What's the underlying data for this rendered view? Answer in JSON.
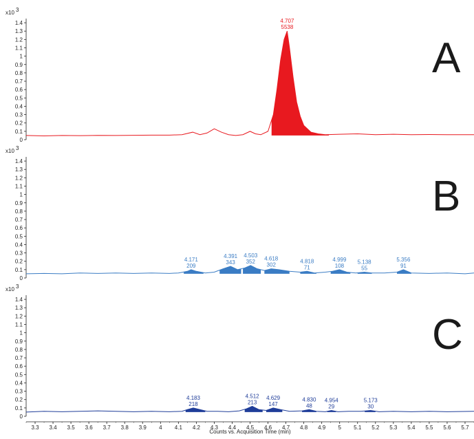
{
  "chart_data": {
    "type": "line",
    "xlabel": "Counts vs. Acquisition Time (min)",
    "xlim": [
      3.25,
      5.75
    ],
    "x_ticks": [
      "3.3",
      "3.4",
      "3.5",
      "3.6",
      "3.7",
      "3.8",
      "3.9",
      "4",
      "4.1",
      "4.2",
      "4.3",
      "4.4",
      "4.5",
      "4.6",
      "4.7",
      "4.8",
      "4.9",
      "5",
      "5.1",
      "5.2",
      "5.3",
      "5.4",
      "5.5",
      "5.6",
      "5.7"
    ],
    "y_ticks": [
      "0",
      "0.1",
      "0.2",
      "0.3",
      "0.4",
      "0.5",
      "0.6",
      "0.7",
      "0.8",
      "0.9",
      "1",
      "1.1",
      "1.2",
      "1.3",
      "1.4"
    ],
    "ylim": [
      0,
      1.45
    ],
    "y_multiplier_label": "x10",
    "y_multiplier_exp": "3",
    "panels": [
      {
        "label": "A",
        "color": "#e8191f",
        "baseline": 0.05,
        "series": {
          "x": [
            3.25,
            3.35,
            3.45,
            3.55,
            3.65,
            3.75,
            3.85,
            3.95,
            4.05,
            4.12,
            4.18,
            4.22,
            4.26,
            4.3,
            4.34,
            4.38,
            4.42,
            4.46,
            4.5,
            4.53,
            4.56,
            4.6,
            4.63,
            4.65,
            4.67,
            4.69,
            4.707,
            4.72,
            4.74,
            4.76,
            4.78,
            4.8,
            4.84,
            4.88,
            4.92,
            5.0,
            5.1,
            5.2,
            5.3,
            5.4,
            5.5,
            5.6,
            5.75
          ],
          "y": [
            0.05,
            0.045,
            0.05,
            0.048,
            0.052,
            0.05,
            0.053,
            0.055,
            0.055,
            0.06,
            0.09,
            0.06,
            0.08,
            0.13,
            0.09,
            0.06,
            0.05,
            0.06,
            0.1,
            0.07,
            0.06,
            0.1,
            0.3,
            0.6,
            0.95,
            1.2,
            1.3,
            1.1,
            0.75,
            0.45,
            0.28,
            0.17,
            0.09,
            0.07,
            0.06,
            0.065,
            0.07,
            0.06,
            0.065,
            0.06,
            0.062,
            0.06,
            0.06
          ]
        },
        "peaks": [
          {
            "rt": "4.707",
            "area": "5538",
            "x": 4.707,
            "start": 4.62,
            "end": 4.94,
            "height": 1.3
          }
        ]
      },
      {
        "label": "B",
        "color": "#3a7cc4",
        "baseline": 0.05,
        "series": {
          "x": [
            3.25,
            3.35,
            3.45,
            3.55,
            3.65,
            3.75,
            3.85,
            3.95,
            4.05,
            4.1,
            4.15,
            4.171,
            4.2,
            4.25,
            4.3,
            4.35,
            4.391,
            4.43,
            4.47,
            4.503,
            4.54,
            4.58,
            4.6,
            4.618,
            4.66,
            4.72,
            4.78,
            4.818,
            4.86,
            4.92,
            4.96,
            4.999,
            5.04,
            5.09,
            5.138,
            5.18,
            5.25,
            5.32,
            5.356,
            5.4,
            5.5,
            5.6,
            5.7,
            5.75
          ],
          "y": [
            0.05,
            0.055,
            0.05,
            0.06,
            0.055,
            0.06,
            0.055,
            0.06,
            0.055,
            0.06,
            0.08,
            0.1,
            0.08,
            0.06,
            0.07,
            0.11,
            0.14,
            0.1,
            0.12,
            0.15,
            0.11,
            0.09,
            0.1,
            0.11,
            0.1,
            0.08,
            0.07,
            0.08,
            0.06,
            0.07,
            0.08,
            0.1,
            0.07,
            0.06,
            0.07,
            0.06,
            0.06,
            0.07,
            0.1,
            0.06,
            0.055,
            0.06,
            0.05,
            0.06
          ]
        },
        "peaks": [
          {
            "rt": "4.171",
            "area": "209",
            "x": 4.171,
            "start": 4.13,
            "end": 4.24,
            "height": 0.1
          },
          {
            "rt": "4.391",
            "area": "343",
            "x": 4.391,
            "start": 4.33,
            "end": 4.45,
            "height": 0.14
          },
          {
            "rt": "4.503",
            "area": "352",
            "x": 4.503,
            "start": 4.46,
            "end": 4.56,
            "height": 0.15
          },
          {
            "rt": "4.618",
            "area": "302",
            "x": 4.618,
            "start": 4.58,
            "end": 4.72,
            "height": 0.11
          },
          {
            "rt": "4.818",
            "area": "71",
            "x": 4.818,
            "start": 4.78,
            "end": 4.87,
            "height": 0.08
          },
          {
            "rt": "4.999",
            "area": "108",
            "x": 4.999,
            "start": 4.95,
            "end": 5.06,
            "height": 0.1
          },
          {
            "rt": "5.138",
            "area": "55",
            "x": 5.138,
            "start": 5.1,
            "end": 5.18,
            "height": 0.07
          },
          {
            "rt": "5.356",
            "area": "91",
            "x": 5.356,
            "start": 5.32,
            "end": 5.4,
            "height": 0.1
          }
        ]
      },
      {
        "label": "C",
        "color": "#1f3d99",
        "baseline": 0.05,
        "series": {
          "x": [
            3.25,
            3.35,
            3.45,
            3.55,
            3.65,
            3.75,
            3.85,
            3.95,
            4.05,
            4.12,
            4.15,
            4.183,
            4.22,
            4.26,
            4.32,
            4.38,
            4.44,
            4.48,
            4.512,
            4.55,
            4.59,
            4.629,
            4.67,
            4.72,
            4.79,
            4.83,
            4.87,
            4.92,
            4.954,
            4.99,
            5.05,
            5.12,
            5.173,
            5.22,
            5.3,
            5.4,
            5.5,
            5.6,
            5.75
          ],
          "y": [
            0.05,
            0.06,
            0.055,
            0.06,
            0.065,
            0.06,
            0.055,
            0.06,
            0.055,
            0.06,
            0.08,
            0.1,
            0.08,
            0.06,
            0.06,
            0.055,
            0.065,
            0.09,
            0.12,
            0.08,
            0.07,
            0.1,
            0.08,
            0.06,
            0.065,
            0.08,
            0.06,
            0.055,
            0.07,
            0.055,
            0.06,
            0.06,
            0.07,
            0.055,
            0.06,
            0.055,
            0.06,
            0.055,
            0.06
          ]
        },
        "peaks": [
          {
            "rt": "4.183",
            "area": "218",
            "x": 4.183,
            "start": 4.14,
            "end": 4.25,
            "height": 0.1
          },
          {
            "rt": "4.512",
            "area": "213",
            "x": 4.512,
            "start": 4.47,
            "end": 4.57,
            "height": 0.12
          },
          {
            "rt": "4.629",
            "area": "147",
            "x": 4.629,
            "start": 4.59,
            "end": 4.68,
            "height": 0.1
          },
          {
            "rt": "4.830",
            "area": "48",
            "x": 4.83,
            "start": 4.79,
            "end": 4.87,
            "height": 0.08
          },
          {
            "rt": "4.954",
            "area": "29",
            "x": 4.954,
            "start": 4.93,
            "end": 4.98,
            "height": 0.07
          },
          {
            "rt": "5.173",
            "area": "30",
            "x": 5.173,
            "start": 5.14,
            "end": 5.2,
            "height": 0.07
          }
        ]
      }
    ]
  }
}
